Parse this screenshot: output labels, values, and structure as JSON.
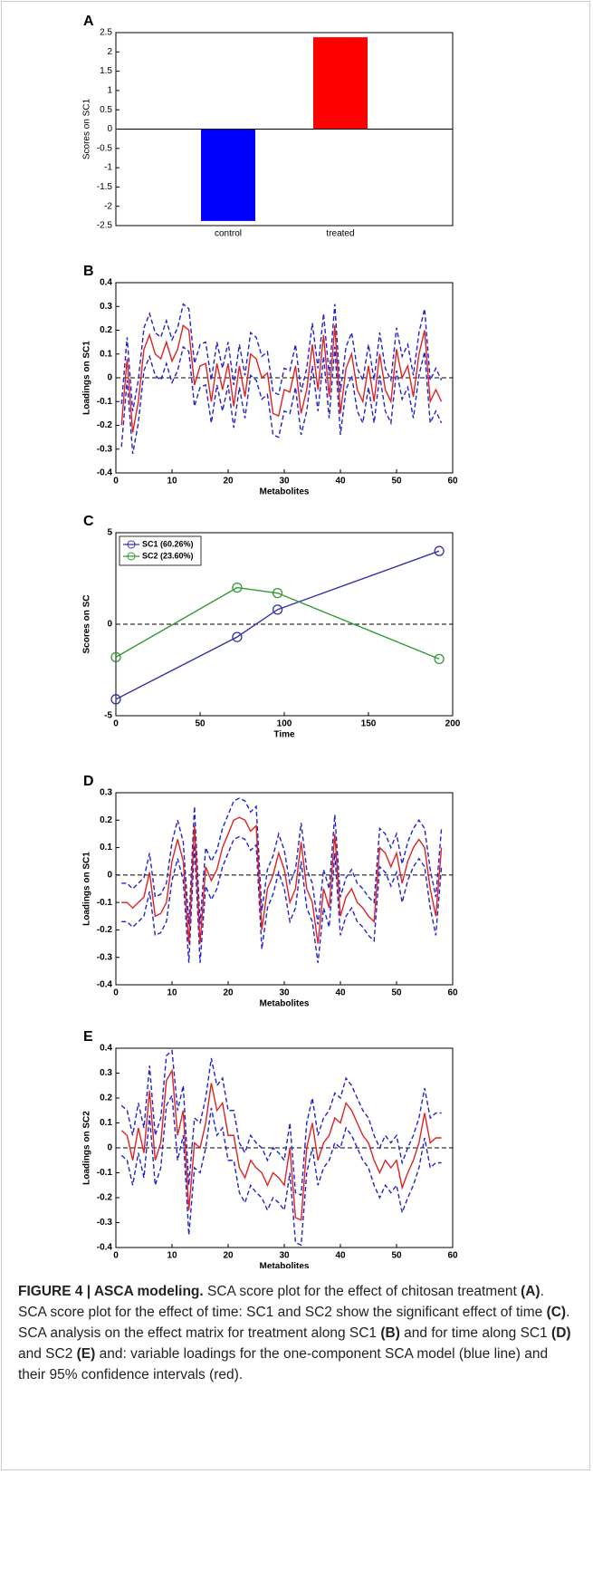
{
  "chart_data": [
    {
      "type": "bar",
      "label": "A",
      "ylabel": "Scores on SC1",
      "categories": [
        "control",
        "treated"
      ],
      "values": [
        -2.38,
        2.38
      ],
      "colors": [
        "#0000ff",
        "#ff0000"
      ],
      "ylim": [
        -2.5,
        2.5
      ],
      "yticks": [
        -2.5,
        -2,
        -1.5,
        -1,
        -0.5,
        0,
        0.5,
        1,
        1.5,
        2,
        2.5
      ],
      "zero_line": "solid"
    },
    {
      "type": "line",
      "label": "B",
      "xlabel": "Metabolites",
      "ylabel": "Loadings on SC1",
      "xlim": [
        0,
        60
      ],
      "xticks": [
        0,
        10,
        20,
        30,
        40,
        50,
        60
      ],
      "ylim": [
        -0.4,
        0.4
      ],
      "yticks": [
        -0.4,
        -0.3,
        -0.2,
        -0.1,
        0,
        0.1,
        0.2,
        0.3,
        0.4
      ],
      "zero_line": "dashed",
      "x": [
        1,
        2,
        3,
        4,
        5,
        6,
        7,
        8,
        9,
        10,
        11,
        12,
        13,
        14,
        15,
        16,
        17,
        18,
        19,
        20,
        21,
        22,
        23,
        24,
        25,
        26,
        27,
        28,
        29,
        30,
        31,
        32,
        33,
        34,
        35,
        36,
        37,
        38,
        39,
        40,
        41,
        42,
        43,
        44,
        45,
        46,
        47,
        48,
        49,
        50,
        51,
        52,
        53,
        54,
        55,
        56,
        57,
        58
      ],
      "series": [
        {
          "color": "#2222cc",
          "style": "dashed",
          "values": [
            -0.11,
            0.17,
            -0.14,
            -0.01,
            0.21,
            0.27,
            0.19,
            0.17,
            0.24,
            0.16,
            0.21,
            0.31,
            0.29,
            0.06,
            0.14,
            0.15,
            -0.01,
            0.15,
            0.04,
            0.15,
            -0.03,
            0.14,
            0.01,
            0.19,
            0.17,
            0.09,
            0.11,
            -0.06,
            -0.07,
            0.04,
            0.03,
            0.14,
            -0.06,
            0.04,
            0.23,
            0.04,
            0.27,
            0.01,
            0.31,
            -0.06,
            0.13,
            0.19,
            0.04,
            -0.01,
            0.14,
            -0.01,
            0.19,
            0.04,
            -0.01,
            0.21,
            0.09,
            0.14,
            0.01,
            0.19,
            0.29,
            -0.01,
            0.04,
            -0.01
          ]
        },
        {
          "color": "#2222cc",
          "style": "dashed",
          "values": [
            -0.29,
            -0.01,
            -0.32,
            -0.19,
            0.03,
            0.09,
            0.01,
            -0.01,
            0.06,
            -0.02,
            0.03,
            0.13,
            0.11,
            -0.12,
            -0.04,
            -0.03,
            -0.19,
            -0.03,
            -0.14,
            -0.03,
            -0.21,
            -0.04,
            -0.17,
            0.01,
            -0.01,
            -0.09,
            -0.07,
            -0.24,
            -0.25,
            -0.14,
            -0.15,
            -0.04,
            -0.24,
            -0.14,
            0.05,
            -0.14,
            0.09,
            -0.17,
            0.13,
            -0.24,
            -0.05,
            0.01,
            -0.14,
            -0.19,
            -0.04,
            -0.19,
            0.01,
            -0.14,
            -0.19,
            0.03,
            -0.09,
            -0.04,
            -0.17,
            0.01,
            0.11,
            -0.19,
            -0.14,
            -0.19
          ]
        },
        {
          "color": "#dd2222",
          "style": "solid",
          "values": [
            -0.2,
            0.08,
            -0.23,
            -0.1,
            0.12,
            0.18,
            0.1,
            0.08,
            0.15,
            0.07,
            0.12,
            0.22,
            0.2,
            -0.03,
            0.05,
            0.06,
            -0.1,
            0.06,
            -0.05,
            0.06,
            -0.12,
            0.05,
            -0.08,
            0.1,
            0.08,
            0,
            0.02,
            -0.15,
            -0.16,
            -0.05,
            -0.06,
            0.05,
            -0.15,
            -0.05,
            0.14,
            -0.05,
            0.18,
            -0.08,
            0.22,
            -0.15,
            0.04,
            0.1,
            -0.05,
            -0.1,
            0.05,
            -0.1,
            0.1,
            -0.05,
            -0.1,
            0.12,
            0,
            0.05,
            -0.08,
            0.1,
            0.2,
            -0.1,
            -0.05,
            -0.1
          ]
        }
      ]
    },
    {
      "type": "line",
      "label": "C",
      "xlabel": "Time",
      "ylabel": "Scores on SC",
      "xlim": [
        0,
        200
      ],
      "xticks": [
        0,
        50,
        100,
        150,
        200
      ],
      "ylim": [
        -5,
        5
      ],
      "yticks": [
        -5,
        0,
        5
      ],
      "zero_line": "dashed",
      "markers": true,
      "legend": "upper left",
      "x": [
        0,
        72,
        96,
        192
      ],
      "series": [
        {
          "name": "SC1 (60.26%)",
          "color": "#3333aa",
          "style": "solid",
          "values": [
            -4.1,
            -0.7,
            0.8,
            4.0
          ]
        },
        {
          "name": "SC2 (23.60%)",
          "color": "#339933",
          "style": "solid",
          "values": [
            -1.8,
            2.0,
            1.7,
            -1.9
          ]
        }
      ]
    },
    {
      "type": "line",
      "label": "D",
      "xlabel": "Metabolites",
      "ylabel": "Loadings on SC1",
      "xlim": [
        0,
        60
      ],
      "xticks": [
        0,
        10,
        20,
        30,
        40,
        50,
        60
      ],
      "ylim": [
        -0.4,
        0.3
      ],
      "yticks": [
        -0.4,
        -0.3,
        -0.2,
        -0.1,
        0,
        0.1,
        0.2,
        0.3
      ],
      "zero_line": "dashed",
      "x": [
        1,
        2,
        3,
        4,
        5,
        6,
        7,
        8,
        9,
        10,
        11,
        12,
        13,
        14,
        15,
        16,
        17,
        18,
        19,
        20,
        21,
        22,
        23,
        24,
        25,
        26,
        27,
        28,
        29,
        30,
        31,
        32,
        33,
        34,
        35,
        36,
        37,
        38,
        39,
        40,
        41,
        42,
        43,
        44,
        45,
        46,
        47,
        48,
        49,
        50,
        51,
        52,
        53,
        54,
        55,
        56,
        57,
        58
      ],
      "series": [
        {
          "color": "#2222cc",
          "style": "dashed",
          "values": [
            -0.03,
            -0.03,
            -0.05,
            -0.03,
            -0.01,
            0.08,
            -0.08,
            -0.07,
            -0.03,
            0.12,
            0.2,
            0.12,
            -0.18,
            0.25,
            -0.18,
            0.1,
            0.05,
            0.09,
            0.17,
            0.22,
            0.27,
            0.28,
            0.27,
            0.23,
            0.25,
            -0.13,
            0.02,
            0.07,
            0.15,
            0.09,
            -0.03,
            0.02,
            0.19,
            0.02,
            -0.03,
            -0.18,
            0.02,
            -0.05,
            0.22,
            -0.08,
            -0.01,
            0.02,
            -0.03,
            -0.05,
            -0.08,
            -0.1,
            0.17,
            0.15,
            0.1,
            0.15,
            0.04,
            0.12,
            0.17,
            0.2,
            0.17,
            0.02,
            -0.08,
            0.17
          ]
        },
        {
          "color": "#2222cc",
          "style": "dashed",
          "values": [
            -0.17,
            -0.17,
            -0.19,
            -0.17,
            -0.15,
            -0.06,
            -0.22,
            -0.21,
            -0.17,
            -0.02,
            0.06,
            -0.02,
            -0.32,
            0.11,
            -0.32,
            -0.04,
            -0.09,
            -0.05,
            0.03,
            0.08,
            0.13,
            0.14,
            0.13,
            0.09,
            0.11,
            -0.27,
            -0.12,
            -0.07,
            0.01,
            -0.05,
            -0.17,
            -0.12,
            0.05,
            -0.12,
            -0.17,
            -0.32,
            -0.12,
            -0.19,
            0.08,
            -0.22,
            -0.15,
            -0.12,
            -0.17,
            -0.19,
            -0.22,
            -0.24,
            0.03,
            0.01,
            -0.04,
            0.01,
            -0.1,
            -0.02,
            0.03,
            0.06,
            0.03,
            -0.12,
            -0.22,
            0.03
          ]
        },
        {
          "color": "#dd2222",
          "style": "solid",
          "values": [
            -0.1,
            -0.1,
            -0.12,
            -0.1,
            -0.08,
            0.01,
            -0.15,
            -0.14,
            -0.1,
            0.05,
            0.13,
            0.05,
            -0.25,
            0.18,
            -0.25,
            0.03,
            -0.02,
            0.02,
            0.1,
            0.15,
            0.2,
            0.21,
            0.2,
            0.16,
            0.18,
            -0.2,
            -0.05,
            0,
            0.08,
            0.02,
            -0.1,
            -0.05,
            0.12,
            -0.05,
            -0.1,
            -0.25,
            -0.05,
            -0.12,
            0.15,
            -0.15,
            -0.08,
            -0.05,
            -0.1,
            -0.12,
            -0.15,
            -0.17,
            0.1,
            0.08,
            0.03,
            0.08,
            -0.03,
            0.05,
            0.1,
            0.13,
            0.1,
            -0.05,
            -0.15,
            0.1
          ]
        }
      ]
    },
    {
      "type": "line",
      "label": "E",
      "xlabel": "Metabolites",
      "ylabel": "Loadings on SC2",
      "xlim": [
        0,
        60
      ],
      "xticks": [
        0,
        10,
        20,
        30,
        40,
        50,
        60
      ],
      "ylim": [
        -0.4,
        0.4
      ],
      "yticks": [
        -0.4,
        -0.3,
        -0.2,
        -0.1,
        0,
        0.1,
        0.2,
        0.3,
        0.4
      ],
      "zero_line": "dashed",
      "x": [
        1,
        2,
        3,
        4,
        5,
        6,
        7,
        8,
        9,
        10,
        11,
        12,
        13,
        14,
        15,
        16,
        17,
        18,
        19,
        20,
        21,
        22,
        23,
        24,
        25,
        26,
        27,
        28,
        29,
        30,
        31,
        32,
        33,
        34,
        35,
        36,
        37,
        38,
        39,
        40,
        41,
        42,
        43,
        44,
        45,
        46,
        47,
        48,
        49,
        50,
        51,
        52,
        53,
        54,
        55,
        56,
        57,
        58
      ],
      "series": [
        {
          "color": "#2222cc",
          "style": "dashed",
          "values": [
            0.17,
            0.15,
            0.05,
            0.18,
            0.08,
            0.33,
            0.05,
            0.12,
            0.37,
            0.39,
            0.15,
            0.25,
            -0.15,
            0.12,
            0.1,
            0.2,
            0.36,
            0.25,
            0.28,
            0.15,
            0.15,
            0.02,
            -0.02,
            0.05,
            0.02,
            0,
            -0.05,
            0,
            -0.02,
            -0.05,
            0.1,
            -0.18,
            -0.19,
            0.1,
            0.2,
            0.05,
            0.12,
            0.15,
            0.22,
            0.2,
            0.28,
            0.25,
            0.2,
            0.15,
            0.12,
            0.05,
            0,
            0.05,
            0.02,
            0.05,
            -0.06,
            0,
            0.05,
            0.12,
            0.24,
            0.12,
            0.14,
            0.14
          ]
        },
        {
          "color": "#2222cc",
          "style": "dashed",
          "values": [
            -0.03,
            -0.05,
            -0.15,
            -0.02,
            -0.12,
            0.13,
            -0.15,
            -0.08,
            0.17,
            0.21,
            -0.05,
            0.05,
            -0.35,
            -0.08,
            -0.1,
            0,
            0.16,
            0.05,
            0.08,
            -0.05,
            -0.05,
            -0.18,
            -0.22,
            -0.15,
            -0.18,
            -0.2,
            -0.25,
            -0.2,
            -0.22,
            -0.25,
            -0.1,
            -0.38,
            -0.39,
            -0.1,
            0,
            -0.15,
            -0.08,
            -0.05,
            0.02,
            0,
            0.08,
            0.05,
            0,
            -0.05,
            -0.08,
            -0.15,
            -0.2,
            -0.15,
            -0.18,
            -0.15,
            -0.26,
            -0.2,
            -0.15,
            -0.08,
            0.04,
            -0.08,
            -0.06,
            -0.06
          ]
        },
        {
          "color": "#dd2222",
          "style": "solid",
          "values": [
            0.07,
            0.05,
            -0.05,
            0.08,
            -0.02,
            0.23,
            -0.05,
            0.02,
            0.27,
            0.31,
            0.05,
            0.15,
            -0.25,
            0.02,
            0,
            0.1,
            0.26,
            0.15,
            0.18,
            0.05,
            0.05,
            -0.08,
            -0.12,
            -0.05,
            -0.08,
            -0.1,
            -0.15,
            -0.1,
            -0.12,
            -0.15,
            0,
            -0.28,
            -0.29,
            0,
            0.1,
            -0.05,
            0.02,
            0.05,
            0.12,
            0.1,
            0.18,
            0.15,
            0.1,
            0.05,
            0.02,
            -0.05,
            -0.1,
            -0.05,
            -0.08,
            -0.05,
            -0.16,
            -0.1,
            -0.05,
            0.02,
            0.14,
            0.02,
            0.04,
            0.04
          ]
        }
      ]
    }
  ],
  "caption": [
    {
      "text": "FIGURE 4 | ASCA modeling.",
      "bold": true
    },
    {
      "text": " SCA score plot for the effect of chitosan treatment ",
      "bold": false
    },
    {
      "text": "(A)",
      "bold": true
    },
    {
      "text": ". SCA score plot for the effect of time: SC1 and SC2 show the significant effect of time ",
      "bold": false
    },
    {
      "text": "(C)",
      "bold": true
    },
    {
      "text": ". SCA analysis on the effect matrix for treatment along SC1 ",
      "bold": false
    },
    {
      "text": "(B)",
      "bold": true
    },
    {
      "text": " and for time along SC1 ",
      "bold": false
    },
    {
      "text": "(D)",
      "bold": true
    },
    {
      "text": " and SC2 ",
      "bold": false
    },
    {
      "text": "(E)",
      "bold": true
    },
    {
      "text": " and: variable loadings for the one-component SCA model (blue line) and their 95% confidence intervals (red).",
      "bold": false
    }
  ]
}
